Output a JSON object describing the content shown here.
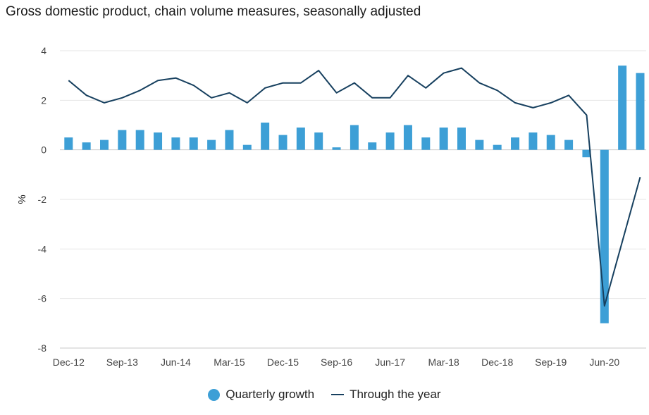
{
  "chart_data": {
    "type": "bar+line",
    "title": "Gross domestic product, chain volume measures, seasonally adjusted",
    "ylabel": "%",
    "ylim": [
      -8,
      4
    ],
    "yticks": [
      4,
      2,
      0,
      -2,
      -4,
      -6,
      -8
    ],
    "colors": {
      "bar": "#3d9fd6",
      "line": "#17405f",
      "grid": "#e6e6e6",
      "axis": "#c8c8c8"
    },
    "quarters": [
      "Dec-12",
      "Mar-13",
      "Jun-13",
      "Sep-13",
      "Dec-13",
      "Mar-14",
      "Jun-14",
      "Sep-14",
      "Dec-14",
      "Mar-15",
      "Jun-15",
      "Sep-15",
      "Dec-15",
      "Mar-16",
      "Jun-16",
      "Sep-16",
      "Dec-16",
      "Mar-17",
      "Jun-17",
      "Sep-17",
      "Dec-17",
      "Mar-18",
      "Jun-18",
      "Sep-18",
      "Dec-18",
      "Mar-19",
      "Jun-19",
      "Sep-19",
      "Dec-19",
      "Mar-20",
      "Jun-20",
      "Sep-20",
      "Dec-20"
    ],
    "x_tick_labels": [
      "Dec-12",
      "Sep-13",
      "Jun-14",
      "Mar-15",
      "Dec-15",
      "Sep-16",
      "Jun-17",
      "Mar-18",
      "Dec-18",
      "Sep-19",
      "Jun-20"
    ],
    "series": [
      {
        "name": "Quarterly growth",
        "type": "bar",
        "values": [
          0.5,
          0.3,
          0.4,
          0.8,
          0.8,
          0.7,
          0.5,
          0.5,
          0.4,
          0.8,
          0.2,
          1.1,
          0.6,
          0.9,
          0.7,
          0.1,
          1.0,
          0.3,
          0.7,
          1.0,
          0.5,
          0.9,
          0.9,
          0.4,
          0.2,
          0.5,
          0.7,
          0.6,
          0.4,
          -0.3,
          -7.0,
          3.4,
          3.1
        ]
      },
      {
        "name": "Through the year",
        "type": "line",
        "values": [
          2.8,
          2.2,
          1.9,
          2.1,
          2.4,
          2.8,
          2.9,
          2.6,
          2.1,
          2.3,
          1.9,
          2.5,
          2.7,
          2.7,
          3.2,
          2.3,
          2.7,
          2.1,
          2.1,
          3.0,
          2.5,
          3.1,
          3.3,
          2.7,
          2.4,
          1.9,
          1.7,
          1.9,
          2.2,
          1.4,
          -6.3,
          -3.7,
          -1.1
        ]
      }
    ],
    "legend": {
      "placement": "bottom-center"
    }
  }
}
